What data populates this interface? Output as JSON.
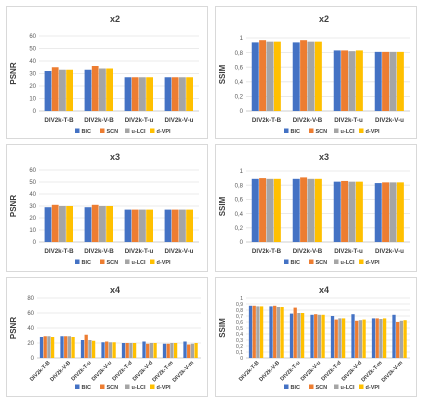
{
  "colors": {
    "BIC": "#4472c4",
    "SCN": "#ed7d31",
    "u-LCI": "#a5a5a5",
    "d-VPI": "#ffc000"
  },
  "chart_data": [
    {
      "type": "bar",
      "title": "x2",
      "ylabel": "PSNR",
      "ylim": [
        0,
        60
      ],
      "yticks": [
        "0",
        "10",
        "20",
        "30",
        "40",
        "50",
        "60"
      ],
      "categories": [
        "DIV2k-T-B",
        "DIV2k-V-B",
        "DIV2k-T-u",
        "DIV2k-V-u"
      ],
      "legend": "bottom",
      "grid": true,
      "series": [
        {
          "name": "BIC",
          "values": [
            32,
            33,
            27,
            27
          ]
        },
        {
          "name": "SCN",
          "values": [
            35,
            36,
            27,
            27
          ]
        },
        {
          "name": "u-LCI",
          "values": [
            33,
            34,
            27,
            27
          ]
        },
        {
          "name": "d-VPI",
          "values": [
            33,
            34,
            27,
            27
          ]
        }
      ]
    },
    {
      "type": "bar",
      "title": "x2",
      "ylabel": "SSIM",
      "ylim": [
        0,
        1
      ],
      "yticks": [
        "0",
        "0,2",
        "0,4",
        "0,6",
        "0,8",
        "1"
      ],
      "categories": [
        "DIV2k-T-B",
        "DIV2k-V-B",
        "DIV2k-T-u",
        "DIV2k-V-u"
      ],
      "legend": "bottom",
      "grid": true,
      "series": [
        {
          "name": "BIC",
          "values": [
            0.94,
            0.94,
            0.83,
            0.81
          ]
        },
        {
          "name": "SCN",
          "values": [
            0.97,
            0.97,
            0.83,
            0.81
          ]
        },
        {
          "name": "u-LCI",
          "values": [
            0.95,
            0.95,
            0.82,
            0.81
          ]
        },
        {
          "name": "d-VPI",
          "values": [
            0.95,
            0.95,
            0.83,
            0.81
          ]
        }
      ]
    },
    {
      "type": "bar",
      "title": "x3",
      "ylabel": "PSNR",
      "ylim": [
        0,
        60
      ],
      "yticks": [
        "0",
        "10",
        "20",
        "30",
        "40",
        "50",
        "60"
      ],
      "categories": [
        "DIV2k-T-B",
        "DIV2k-V-B",
        "DIV2k-T-u",
        "DIV2k-V-u"
      ],
      "legend": "bottom",
      "grid": true,
      "series": [
        {
          "name": "BIC",
          "values": [
            29,
            29,
            27,
            27
          ]
        },
        {
          "name": "SCN",
          "values": [
            31,
            31,
            27,
            27
          ]
        },
        {
          "name": "u-LCI",
          "values": [
            30,
            30,
            27,
            27
          ]
        },
        {
          "name": "d-VPI",
          "values": [
            30,
            30,
            27,
            27
          ]
        }
      ]
    },
    {
      "type": "bar",
      "title": "x3",
      "ylabel": "SSIM",
      "ylim": [
        0,
        1
      ],
      "yticks": [
        "0",
        "0,2",
        "0,4",
        "0,6",
        "0,8",
        "1"
      ],
      "categories": [
        "DIV2k-T-B",
        "DIV2k-V-B",
        "DIV2k-T-u",
        "DIV2k-V-u"
      ],
      "legend": "bottom",
      "grid": true,
      "series": [
        {
          "name": "BIC",
          "values": [
            0.89,
            0.89,
            0.85,
            0.83
          ]
        },
        {
          "name": "SCN",
          "values": [
            0.9,
            0.91,
            0.86,
            0.84
          ]
        },
        {
          "name": "u-LCI",
          "values": [
            0.89,
            0.89,
            0.85,
            0.84
          ]
        },
        {
          "name": "d-VPI",
          "values": [
            0.89,
            0.89,
            0.85,
            0.84
          ]
        }
      ]
    },
    {
      "type": "bar",
      "title": "x4",
      "ylabel": "PSNR",
      "ylim": [
        0,
        80
      ],
      "yticks": [
        "0",
        "20",
        "40",
        "60",
        "80"
      ],
      "categories": [
        "DIV2k-T-B",
        "DIV2k-V-B",
        "DIV2k-T-u",
        "DIV2k-V-u",
        "DIV2k-T-d",
        "DIV2k-V-d",
        "DIV2k-T-m",
        "DIV2k-V-m"
      ],
      "legend": "bottom",
      "grid": true,
      "series": [
        {
          "name": "BIC",
          "values": [
            28,
            29,
            24,
            21,
            20,
            22,
            19,
            22
          ]
        },
        {
          "name": "SCN",
          "values": [
            29,
            29,
            31,
            22,
            20,
            19,
            19,
            18
          ]
        },
        {
          "name": "u-LCI",
          "values": [
            29,
            29,
            24,
            21,
            20,
            20,
            20,
            19
          ]
        },
        {
          "name": "d-VPI",
          "values": [
            28,
            28,
            23,
            21,
            20,
            20,
            20,
            20
          ]
        }
      ]
    },
    {
      "type": "bar",
      "title": "x4",
      "ylabel": "SSIM",
      "ylim": [
        0,
        1
      ],
      "yticks": [
        "0",
        "0,1",
        "0,2",
        "0,3",
        "0,4",
        "0,5",
        "0,6",
        "0,7",
        "0,8",
        "0,9",
        "1"
      ],
      "categories": [
        "DIV2k-T-B",
        "DIV2k-V-B",
        "DIV2k-T-u",
        "DIV2k-V-u",
        "DIV2k-T-d",
        "DIV2k-V-d",
        "DIV2k-T-m",
        "DIV2k-V-m"
      ],
      "legend": "bottom",
      "grid": true,
      "series": [
        {
          "name": "BIC",
          "values": [
            0.87,
            0.86,
            0.74,
            0.72,
            0.7,
            0.73,
            0.66,
            0.72
          ]
        },
        {
          "name": "SCN",
          "values": [
            0.87,
            0.87,
            0.84,
            0.73,
            0.64,
            0.62,
            0.66,
            0.6
          ]
        },
        {
          "name": "u-LCI",
          "values": [
            0.86,
            0.85,
            0.75,
            0.72,
            0.66,
            0.63,
            0.65,
            0.62
          ]
        },
        {
          "name": "d-VPI",
          "values": [
            0.86,
            0.85,
            0.75,
            0.72,
            0.66,
            0.64,
            0.66,
            0.63
          ]
        }
      ]
    }
  ]
}
